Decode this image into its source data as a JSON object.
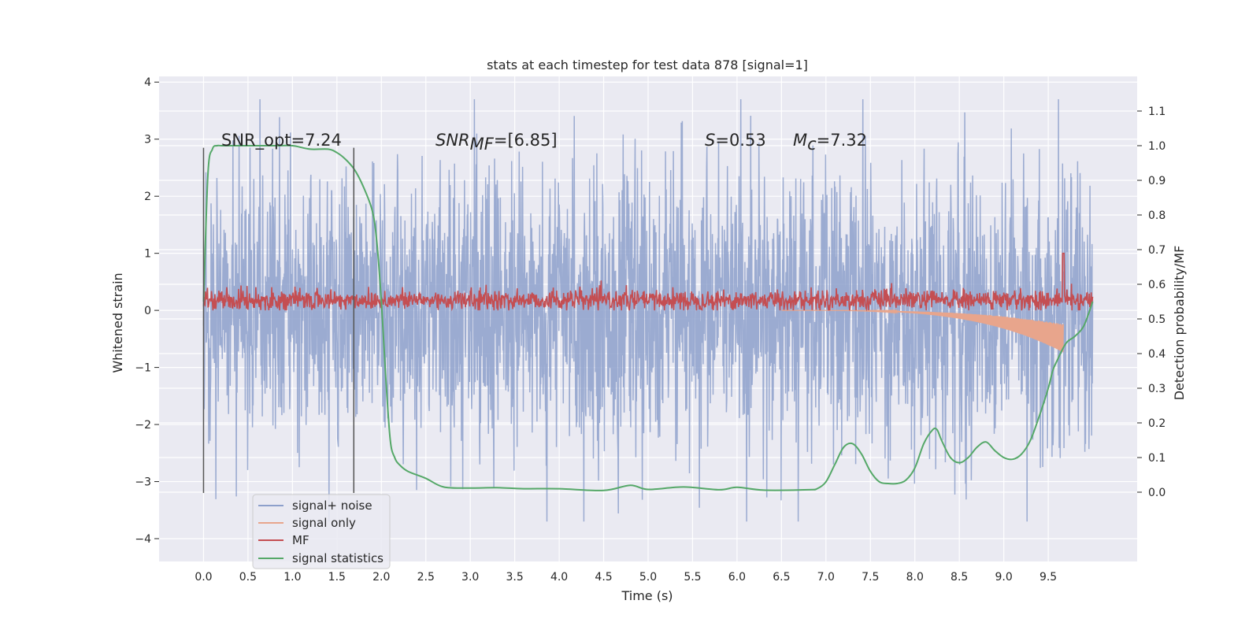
{
  "chart_data": {
    "type": "line",
    "title": "stats at each timestep for test data 878 [signal=1]",
    "xlabel": "Time (s)",
    "ylabel": "Whitened strain",
    "y2label": "Detection probability/MF",
    "xlim": [
      -0.5,
      10.5
    ],
    "ylim": [
      -4.4,
      4.1
    ],
    "y2lim": [
      -0.2,
      1.2
    ],
    "x_ticks": [
      "0.0",
      "0.5",
      "1.0",
      "1.5",
      "2.0",
      "2.5",
      "3.0",
      "3.5",
      "4.0",
      "4.5",
      "5.0",
      "5.5",
      "6.0",
      "6.5",
      "7.0",
      "7.5",
      "8.0",
      "8.5",
      "9.0",
      "9.5"
    ],
    "x_tick_values": [
      0.0,
      0.5,
      1.0,
      1.5,
      2.0,
      2.5,
      3.0,
      3.5,
      4.0,
      4.5,
      5.0,
      5.5,
      6.0,
      6.5,
      7.0,
      7.5,
      8.0,
      8.5,
      9.0,
      9.5
    ],
    "y_ticks": [
      "4",
      "3",
      "2",
      "1",
      "0",
      "−1",
      "−2",
      "−3",
      "−4"
    ],
    "y_tick_values": [
      4,
      3,
      2,
      1,
      0,
      -1,
      -2,
      -3,
      -4
    ],
    "y2_ticks": [
      "1.1",
      "1.0",
      "0.9",
      "0.8",
      "0.7",
      "0.6",
      "0.5",
      "0.4",
      "0.3",
      "0.2",
      "0.1",
      "0.0"
    ],
    "y2_tick_values": [
      1.1,
      1.0,
      0.9,
      0.8,
      0.7,
      0.6,
      0.5,
      0.4,
      0.3,
      0.2,
      0.1,
      0.0
    ],
    "grid": true,
    "legend_position": "bottom-left",
    "annotations": {
      "snr_opt": "SNR_opt=7.24",
      "snr_mf_base": "SNR",
      "snr_mf_sub": "MF",
      "snr_mf_value": "=[6.85]",
      "s_symbol": "S",
      "s_value": "=0.53",
      "mc_symbol": "M",
      "mc_sub": "c",
      "mc_value": "=7.32"
    },
    "vlines": [
      {
        "x": 0.0,
        "ymin": -3.2,
        "ymax": 2.85
      },
      {
        "x": 1.69,
        "ymin": -3.2,
        "ymax": 2.85
      }
    ],
    "series": [
      {
        "name": "signal+ noise",
        "color": "#8da0cb",
        "axis": "left",
        "x_range": [
          0.0,
          10.0
        ],
        "noise_amplitude": 1.25
      },
      {
        "name": "signal only",
        "color": "#e8a58c",
        "axis": "left",
        "x_range": [
          6.5,
          9.67
        ],
        "peak": -0.8
      },
      {
        "name": "MF",
        "color": "#c44e52",
        "axis": "left",
        "x_range": [
          0.0,
          10.0
        ],
        "level": 0.18
      },
      {
        "name": "signal statistics",
        "color": "#55a868",
        "axis": "right",
        "x": [
          0.0,
          0.05,
          0.1,
          0.15,
          0.2,
          0.3,
          0.5,
          0.8,
          1.0,
          1.2,
          1.4,
          1.5,
          1.6,
          1.7,
          1.8,
          1.9,
          1.95,
          2.0,
          2.05,
          2.1,
          2.15,
          2.2,
          2.3,
          2.5,
          2.7,
          3.0,
          3.3,
          3.6,
          4.0,
          4.5,
          4.8,
          5.0,
          5.4,
          5.8,
          6.0,
          6.3,
          6.8,
          6.9,
          7.0,
          7.1,
          7.2,
          7.3,
          7.4,
          7.5,
          7.6,
          7.7,
          7.8,
          7.9,
          8.0,
          8.1,
          8.2,
          8.25,
          8.3,
          8.4,
          8.5,
          8.6,
          8.7,
          8.8,
          8.9,
          9.0,
          9.1,
          9.2,
          9.3,
          9.4,
          9.5,
          9.55,
          9.6,
          9.7,
          9.8,
          9.9,
          10.0
        ],
        "values": [
          0.55,
          0.92,
          0.99,
          1.0,
          1.0,
          1.0,
          1.0,
          1.0,
          1.0,
          0.99,
          0.99,
          0.98,
          0.96,
          0.93,
          0.88,
          0.81,
          0.72,
          0.55,
          0.33,
          0.15,
          0.1,
          0.08,
          0.06,
          0.04,
          0.015,
          0.012,
          0.013,
          0.01,
          0.01,
          0.005,
          0.02,
          0.008,
          0.015,
          0.007,
          0.014,
          0.006,
          0.007,
          0.01,
          0.03,
          0.08,
          0.13,
          0.14,
          0.11,
          0.06,
          0.03,
          0.025,
          0.025,
          0.035,
          0.07,
          0.14,
          0.18,
          0.18,
          0.15,
          0.1,
          0.085,
          0.1,
          0.13,
          0.145,
          0.12,
          0.1,
          0.095,
          0.11,
          0.15,
          0.22,
          0.3,
          0.35,
          0.38,
          0.43,
          0.45,
          0.48,
          0.55
        ]
      }
    ]
  }
}
